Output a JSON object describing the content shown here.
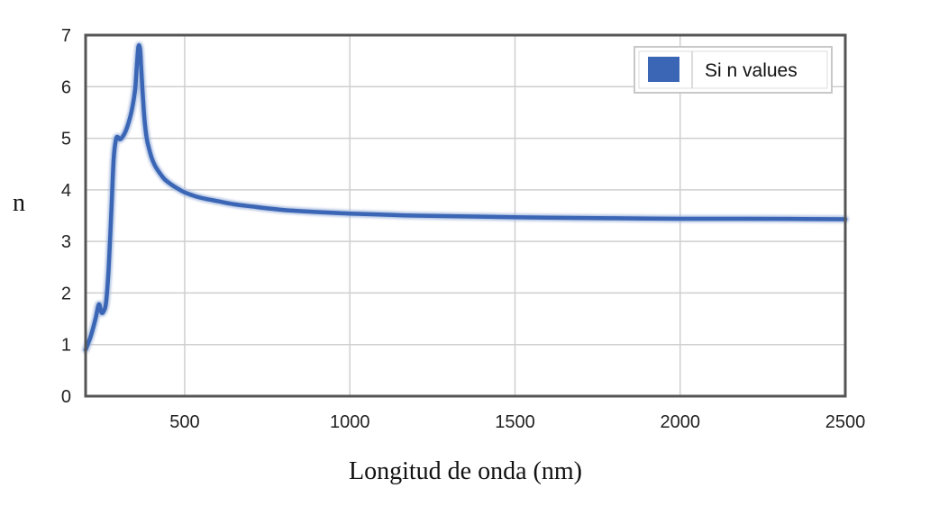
{
  "chart_data": {
    "type": "line",
    "title": "",
    "xlabel": "Longitud de onda (nm)",
    "ylabel": "n",
    "xlim": [
      200,
      2500
    ],
    "ylim": [
      0,
      7
    ],
    "x_ticks": [
      500,
      1000,
      1500,
      2000,
      2500
    ],
    "x_tick_labels": [
      "500",
      "1000",
      "1500",
      "2000",
      "2500"
    ],
    "y_ticks": [
      0,
      1,
      2,
      3,
      4,
      5,
      6,
      7
    ],
    "y_tick_labels": [
      "0",
      "1",
      "2",
      "3",
      "4",
      "5",
      "6",
      "7"
    ],
    "grid": true,
    "legend": {
      "position": "top-right"
    },
    "series": [
      {
        "name": "Si n values",
        "color": "#3a66b5",
        "x": [
          200,
          215,
          230,
          240,
          248,
          255,
          262,
          270,
          278,
          285,
          292,
          298,
          303,
          310,
          320,
          330,
          340,
          350,
          355,
          360,
          365,
          368,
          372,
          376,
          380,
          385,
          390,
          400,
          410,
          425,
          440,
          460,
          480,
          500,
          530,
          560,
          600,
          650,
          700,
          800,
          900,
          1000,
          1100,
          1200,
          1400,
          1600,
          1800,
          2000,
          2200,
          2500
        ],
        "y": [
          0.9,
          1.15,
          1.5,
          1.78,
          1.62,
          1.65,
          1.82,
          2.5,
          3.6,
          4.6,
          4.98,
          5.02,
          4.98,
          5.01,
          5.12,
          5.3,
          5.55,
          5.95,
          6.4,
          6.78,
          6.72,
          6.4,
          5.95,
          5.55,
          5.25,
          5.0,
          4.85,
          4.62,
          4.47,
          4.32,
          4.2,
          4.1,
          4.02,
          3.95,
          3.88,
          3.83,
          3.78,
          3.72,
          3.68,
          3.61,
          3.57,
          3.54,
          3.52,
          3.5,
          3.48,
          3.46,
          3.45,
          3.44,
          3.44,
          3.43
        ]
      }
    ]
  }
}
